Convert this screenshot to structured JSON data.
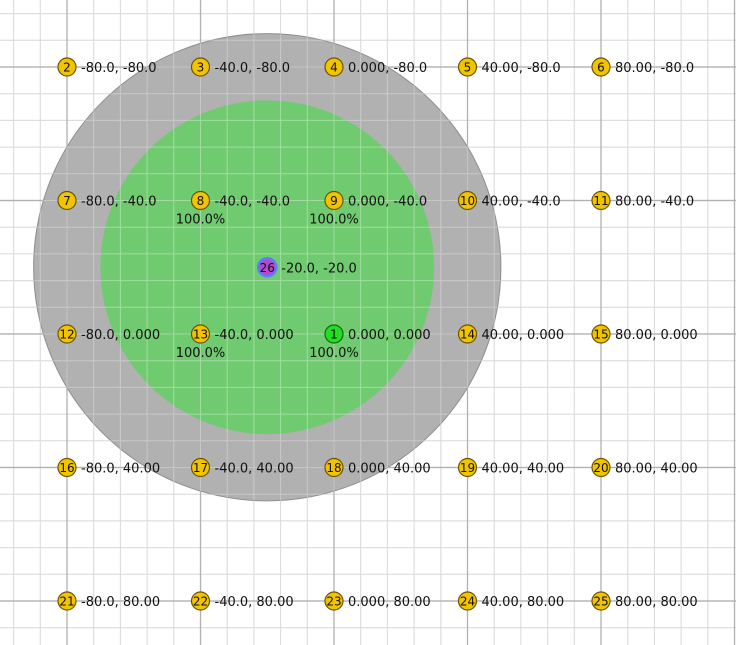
{
  "colors": {
    "background": "#ffffff",
    "grid_minor": "#c8c8c8",
    "grid_major": "#888888",
    "outer_zone": "#aaaaaa",
    "inner_zone": "#6acc6a",
    "node_default": "#f2c400",
    "node_active": "#22dd22",
    "node_center": "#b04ad0",
    "node_center_ring": "#5a7cff"
  },
  "zones": {
    "center": {
      "x": -20.0,
      "y": -20.0
    },
    "outer_radius": 70,
    "inner_radius": 50
  },
  "nodes": [
    {
      "id": "1",
      "x": 0,
      "y": 0,
      "label": "0.000, 0.000",
      "pct": "100.0%",
      "style": "active"
    },
    {
      "id": "2",
      "x": -80,
      "y": -80,
      "label": "-80.0, -80.0",
      "pct": "",
      "style": "default"
    },
    {
      "id": "3",
      "x": -40,
      "y": -80,
      "label": "-40.0, -80.0",
      "pct": "",
      "style": "default"
    },
    {
      "id": "4",
      "x": 0,
      "y": -80,
      "label": "0.000, -80.0",
      "pct": "",
      "style": "default"
    },
    {
      "id": "5",
      "x": 40,
      "y": -80,
      "label": "40.00, -80.0",
      "pct": "",
      "style": "default"
    },
    {
      "id": "6",
      "x": 80,
      "y": -80,
      "label": "80.00, -80.0",
      "pct": "",
      "style": "default"
    },
    {
      "id": "7",
      "x": -80,
      "y": -40,
      "label": "-80.0, -40.0",
      "pct": "",
      "style": "default"
    },
    {
      "id": "8",
      "x": -40,
      "y": -40,
      "label": "-40.0, -40.0",
      "pct": "100.0%",
      "style": "default"
    },
    {
      "id": "9",
      "x": 0,
      "y": -40,
      "label": "0.000, -40.0",
      "pct": "100.0%",
      "style": "default"
    },
    {
      "id": "10",
      "x": 40,
      "y": -40,
      "label": "40.00, -40.0",
      "pct": "",
      "style": "default"
    },
    {
      "id": "11",
      "x": 80,
      "y": -40,
      "label": "80.00, -40.0",
      "pct": "",
      "style": "default"
    },
    {
      "id": "12",
      "x": -80,
      "y": 0,
      "label": "-80.0, 0.000",
      "pct": "",
      "style": "default"
    },
    {
      "id": "13",
      "x": -40,
      "y": 0,
      "label": "-40.0, 0.000",
      "pct": "100.0%",
      "style": "default"
    },
    {
      "id": "14",
      "x": 40,
      "y": 0,
      "label": "40.00, 0.000",
      "pct": "",
      "style": "default"
    },
    {
      "id": "15",
      "x": 80,
      "y": 0,
      "label": "80.00, 0.000",
      "pct": "",
      "style": "default"
    },
    {
      "id": "16",
      "x": -80,
      "y": 40,
      "label": "-80.0, 40.00",
      "pct": "",
      "style": "default"
    },
    {
      "id": "17",
      "x": -40,
      "y": 40,
      "label": "-40.0, 40.00",
      "pct": "",
      "style": "default"
    },
    {
      "id": "18",
      "x": 0,
      "y": 40,
      "label": "0.000, 40.00",
      "pct": "",
      "style": "default"
    },
    {
      "id": "19",
      "x": 40,
      "y": 40,
      "label": "40.00, 40.00",
      "pct": "",
      "style": "default"
    },
    {
      "id": "20",
      "x": 80,
      "y": 40,
      "label": "80.00, 40.00",
      "pct": "",
      "style": "default"
    },
    {
      "id": "21",
      "x": -80,
      "y": 80,
      "label": "-80.0, 80.00",
      "pct": "",
      "style": "default"
    },
    {
      "id": "22",
      "x": -40,
      "y": 80,
      "label": "-40.0, 80.00",
      "pct": "",
      "style": "default"
    },
    {
      "id": "23",
      "x": 0,
      "y": 80,
      "label": "0.000, 80.00",
      "pct": "",
      "style": "default"
    },
    {
      "id": "24",
      "x": 40,
      "y": 80,
      "label": "40.00, 80.00",
      "pct": "",
      "style": "default"
    },
    {
      "id": "25",
      "x": 80,
      "y": 80,
      "label": "80.00, 80.00",
      "pct": "",
      "style": "default"
    },
    {
      "id": "26",
      "x": -20,
      "y": -20,
      "label": "-20.0, -20.0",
      "pct": "",
      "style": "center"
    }
  ]
}
